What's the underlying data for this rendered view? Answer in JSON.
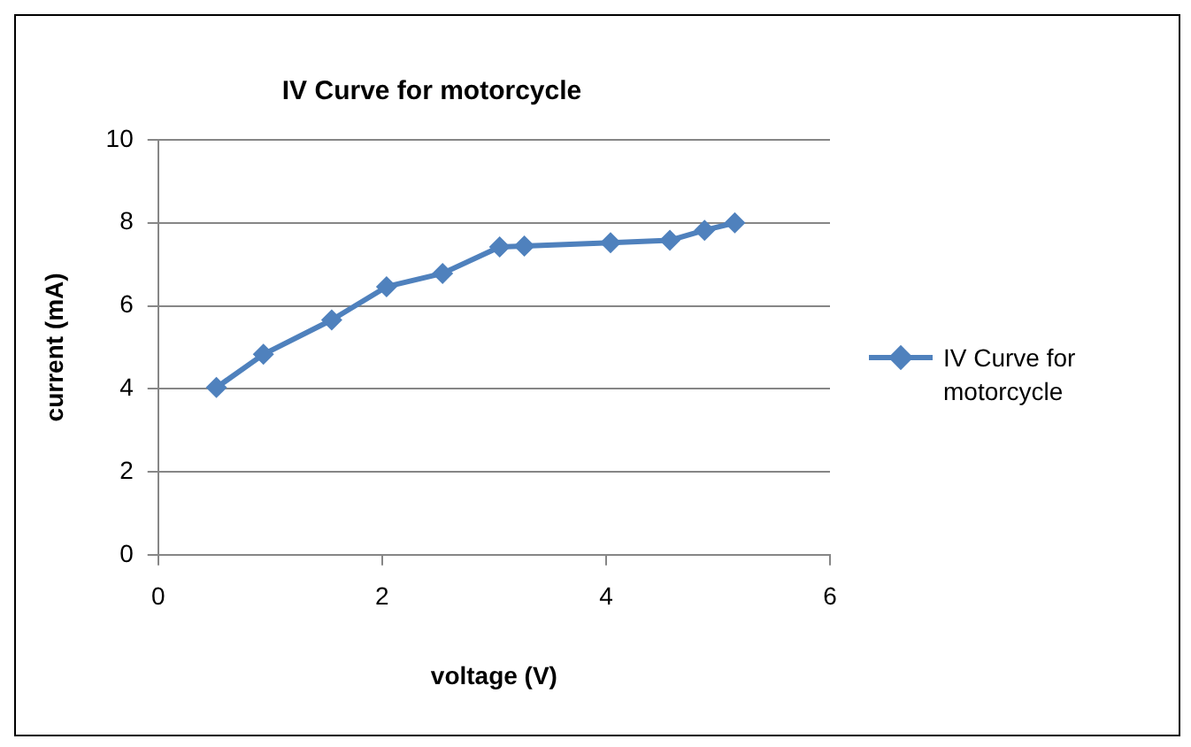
{
  "chart_data": {
    "type": "line",
    "title": "IV Curve for motorcycle",
    "xlabel": "voltage (V)",
    "ylabel": "current (mA)",
    "x": [
      0.52,
      0.94,
      1.55,
      2.04,
      2.54,
      3.05,
      3.27,
      4.04,
      4.57,
      4.88,
      5.15
    ],
    "series": [
      {
        "name": "IV Curve for motorcycle",
        "color": "#4f81bd",
        "values": [
          4.03,
          4.83,
          5.66,
          6.46,
          6.78,
          7.42,
          7.44,
          7.52,
          7.58,
          7.82,
          8.0
        ]
      }
    ],
    "xlim": [
      0,
      6
    ],
    "xticks": [
      0,
      2,
      4,
      6
    ],
    "ylim": [
      0,
      10
    ],
    "yticks": [
      0,
      2,
      4,
      6,
      8,
      10
    ],
    "grid": "y",
    "legend": "right",
    "marker": "diamond",
    "line_style": "solid"
  }
}
